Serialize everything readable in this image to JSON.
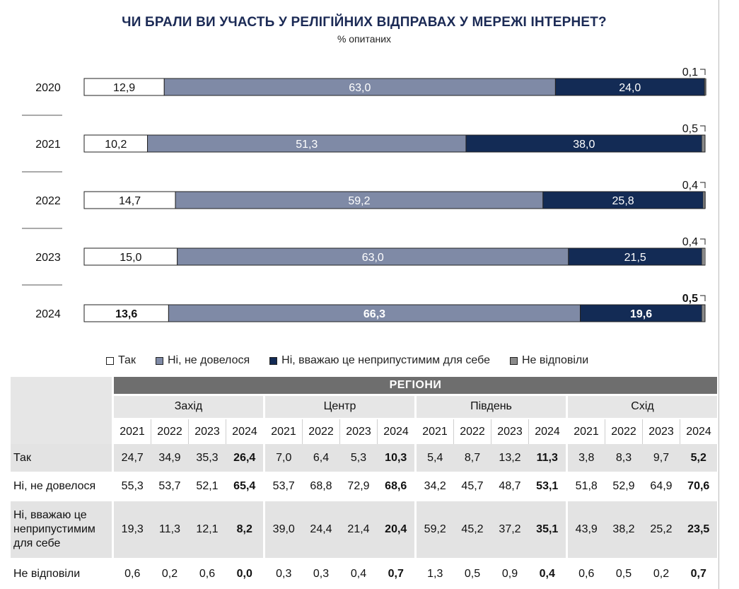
{
  "title": "ЧИ БРАЛИ ВИ УЧАСТЬ У РЕЛІГІЙНИХ ВІДПРАВАХ У МЕРЕЖІ ІНТЕРНЕТ?",
  "subtitle": "% опитаних",
  "colors": {
    "yes": "#ffffff",
    "no_need": "#7f8aa6",
    "unacceptable": "#132b55",
    "no_answer": "#8a8a8a",
    "header_dark": "#6e6e6e",
    "header_light": "#e6e6e6",
    "row_shade": "#e3e3e3"
  },
  "chart_data": {
    "type": "bar",
    "orientation": "horizontal-stacked",
    "categories": [
      "2020",
      "2021",
      "2022",
      "2023",
      "2024"
    ],
    "series": [
      {
        "name": "Так",
        "values": [
          12.9,
          10.2,
          14.7,
          15.0,
          13.6
        ],
        "labels": [
          "12,9",
          "10,2",
          "14,7",
          "15,0",
          "13,6"
        ]
      },
      {
        "name": "Ні, не довелося",
        "values": [
          63.0,
          51.3,
          59.2,
          63.0,
          66.3
        ],
        "labels": [
          "63,0",
          "51,3",
          "59,2",
          "63,0",
          "66,3"
        ]
      },
      {
        "name": "Ні, вважаю це неприпустимим для себе",
        "values": [
          24.0,
          38.0,
          25.8,
          21.5,
          19.6
        ],
        "labels": [
          "24,0",
          "38,0",
          "25,8",
          "21,5",
          "19,6"
        ]
      },
      {
        "name": "Не відповіли",
        "values": [
          0.1,
          0.5,
          0.4,
          0.4,
          0.5
        ],
        "labels": [
          "0,1",
          "0,5",
          "0,4",
          "0,4",
          "0,5"
        ]
      }
    ],
    "xlim": [
      0,
      100
    ],
    "bold_category": "2024",
    "legend_position": "bottom"
  },
  "table": {
    "group_header": "РЕГІОНИ",
    "regions": [
      "Захід",
      "Центр",
      "Південь",
      "Схід"
    ],
    "years": [
      "2021",
      "2022",
      "2023",
      "2024"
    ],
    "rows": [
      {
        "label": "Так",
        "values": [
          "24,7",
          "34,9",
          "35,3",
          "26,4",
          "7,0",
          "6,4",
          "5,3",
          "10,3",
          "5,4",
          "8,7",
          "13,2",
          "11,3",
          "3,8",
          "8,3",
          "9,7",
          "5,2"
        ]
      },
      {
        "label": "Ні, не довелося",
        "values": [
          "55,3",
          "53,7",
          "52,1",
          "65,4",
          "53,7",
          "68,8",
          "72,9",
          "68,6",
          "34,2",
          "45,7",
          "48,7",
          "53,1",
          "51,8",
          "52,9",
          "64,9",
          "70,6"
        ]
      },
      {
        "label": "Ні, вважаю це неприпустимим для себе",
        "values": [
          "19,3",
          "11,3",
          "12,1",
          "8,2",
          "39,0",
          "24,4",
          "21,4",
          "20,4",
          "59,2",
          "45,2",
          "37,2",
          "35,1",
          "43,9",
          "38,2",
          "25,2",
          "23,5"
        ]
      },
      {
        "label": "Не відповіли",
        "values": [
          "0,6",
          "0,2",
          "0,6",
          "0,0",
          "0,3",
          "0,3",
          "0,4",
          "0,7",
          "1,3",
          "0,5",
          "0,9",
          "0,4",
          "0,6",
          "0,5",
          "0,2",
          "0,7"
        ]
      }
    ]
  }
}
